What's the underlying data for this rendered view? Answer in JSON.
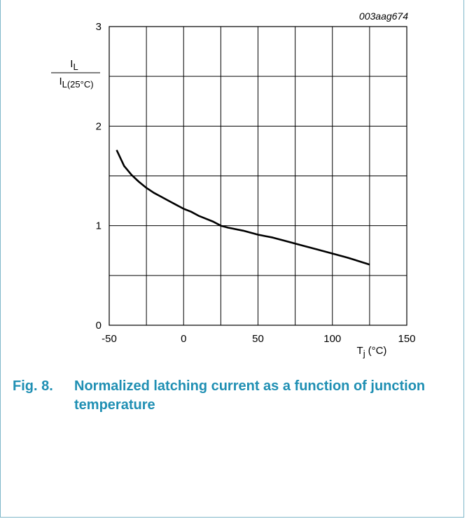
{
  "figure_id": "003aag674",
  "caption": {
    "number": "Fig. 8.",
    "text": "Normalized latching current as a function of junction temperature"
  },
  "chart_data": {
    "type": "line",
    "ylabel_numerator": {
      "main": "I",
      "sub": "L"
    },
    "ylabel_denominator": {
      "main": "I",
      "sub": "L(25°C)"
    },
    "xlabel": {
      "main": "T",
      "sub": "j",
      "unit": "(°C)"
    },
    "xlim": [
      -50,
      150
    ],
    "ylim": [
      0,
      3
    ],
    "xticks": [
      "-50",
      "0",
      "50",
      "100",
      "150"
    ],
    "yticks": [
      "0",
      "1",
      "2",
      "3"
    ],
    "grid": true,
    "series": [
      {
        "x": [
          -45,
          -40,
          -35,
          -30,
          -25,
          -20,
          -15,
          -10,
          -5,
          0,
          5,
          10,
          15,
          20,
          25,
          30,
          40,
          50,
          60,
          70,
          80,
          90,
          100,
          110,
          125
        ],
        "y": [
          1.76,
          1.6,
          1.51,
          1.44,
          1.38,
          1.33,
          1.29,
          1.25,
          1.21,
          1.17,
          1.14,
          1.1,
          1.07,
          1.04,
          1.0,
          0.98,
          0.95,
          0.91,
          0.88,
          0.84,
          0.8,
          0.76,
          0.72,
          0.68,
          0.61
        ]
      }
    ],
    "colors": {
      "line": "#000000",
      "grid": "#000000",
      "caption": "#1f8fb3"
    }
  }
}
